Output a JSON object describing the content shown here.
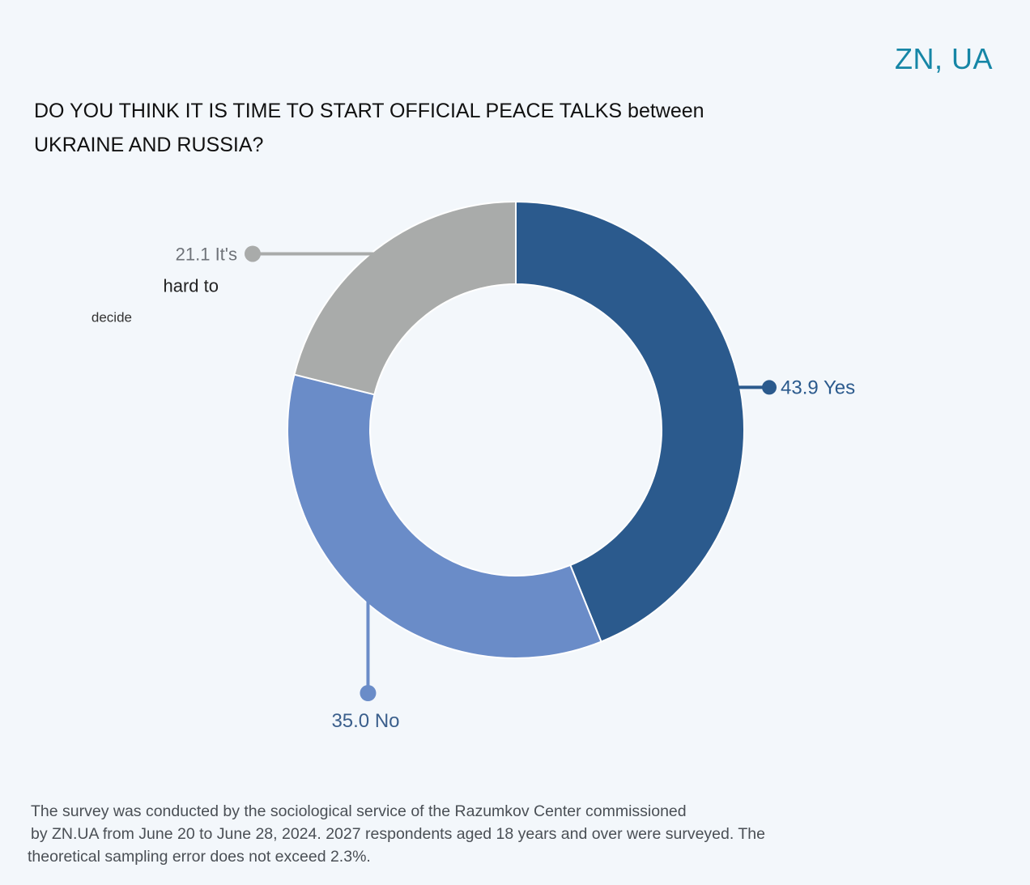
{
  "brand": "ZN, UA",
  "title": {
    "line1": "DO YOU THINK IT IS TIME TO START OFFICIAL PEACE TALKS between",
    "line2": "UKRAINE AND RUSSIA?"
  },
  "chart_data": {
    "type": "pie",
    "subtype": "donut",
    "title": "DO YOU THINK IT IS TIME TO START OFFICIAL PEACE TALKS between UKRAINE AND RUSSIA?",
    "categories": [
      "Yes",
      "No",
      "It's hard to decide"
    ],
    "values": [
      43.9,
      35.0,
      21.1
    ],
    "labels": [
      "43.9 Yes",
      "35.0 No",
      "21.1 It's hard to decide"
    ],
    "label_lines": [
      [
        "43.9 Yes"
      ],
      [
        "35.0 No"
      ],
      [
        "21.1 It's",
        "hard to",
        "decide"
      ]
    ],
    "colors": [
      "#2b5a8d",
      "#6a8cc8",
      "#a9abaa"
    ],
    "start": "top",
    "direction": "clockwise"
  },
  "footnote": {
    "line1": "The survey was conducted by the sociological service of the Razumkov Center commissioned",
    "line2": "by ZN.UA from June 20 to June 28, 2024. 2027 respondents aged 18 years and over were surveyed. The",
    "line3": "theoretical sampling error does not exceed 2.3%."
  }
}
